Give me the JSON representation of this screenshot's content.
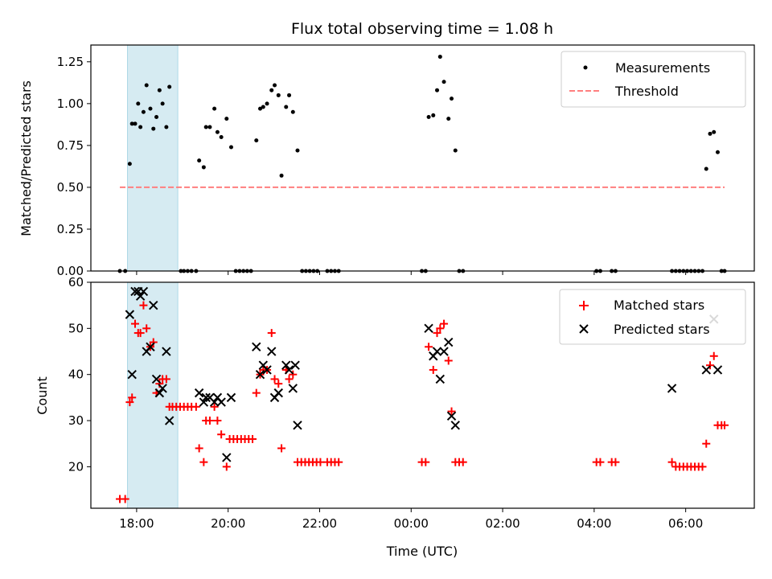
{
  "chart_data": [
    {
      "type": "scatter",
      "title": "Flux total observing time = 1.08 h",
      "xlabel": "",
      "ylabel": "Matched/Predicted stars",
      "xlim": [
        "17:00",
        "07:30"
      ],
      "ylim": [
        0,
        1.35
      ],
      "yticks": [
        "0.00",
        "0.25",
        "0.50",
        "0.75",
        "1.00",
        "1.25"
      ],
      "shaded_interval": {
        "start": "17:48",
        "end": "18:54",
        "color": "#add8e6"
      },
      "legend_position": "upper right",
      "series": [
        {
          "name": "Measurements",
          "marker": "dot",
          "color": "#000000",
          "points": [
            [
              "17:38",
              0
            ],
            [
              "17:45",
              0
            ],
            [
              "17:51",
              0.64
            ],
            [
              "17:54",
              0.88
            ],
            [
              "17:58",
              0.88
            ],
            [
              "18:02",
              1.0
            ],
            [
              "18:05",
              0.86
            ],
            [
              "18:09",
              0.95
            ],
            [
              "18:13",
              1.11
            ],
            [
              "18:18",
              0.97
            ],
            [
              "18:22",
              0.85
            ],
            [
              "18:26",
              0.92
            ],
            [
              "18:30",
              1.08
            ],
            [
              "18:34",
              1.0
            ],
            [
              "18:39",
              0.86
            ],
            [
              "18:43",
              1.1
            ],
            [
              "18:58",
              0
            ],
            [
              "19:02",
              0
            ],
            [
              "19:07",
              0
            ],
            [
              "19:12",
              0
            ],
            [
              "19:18",
              0
            ],
            [
              "19:22",
              0.66
            ],
            [
              "19:28",
              0.62
            ],
            [
              "19:31",
              0.86
            ],
            [
              "19:36",
              0.86
            ],
            [
              "19:42",
              0.97
            ],
            [
              "19:46",
              0.83
            ],
            [
              "19:51",
              0.8
            ],
            [
              "19:58",
              0.91
            ],
            [
              "20:04",
              0.74
            ],
            [
              "20:10",
              0
            ],
            [
              "20:15",
              0
            ],
            [
              "20:20",
              0
            ],
            [
              "20:25",
              0
            ],
            [
              "20:30",
              0
            ],
            [
              "20:37",
              0.78
            ],
            [
              "20:42",
              0.97
            ],
            [
              "20:46",
              0.98
            ],
            [
              "20:51",
              1.0
            ],
            [
              "20:57",
              1.08
            ],
            [
              "21:01",
              1.11
            ],
            [
              "21:06",
              1.05
            ],
            [
              "21:10",
              0.57
            ],
            [
              "21:16",
              0.98
            ],
            [
              "21:20",
              1.05
            ],
            [
              "21:25",
              0.95
            ],
            [
              "21:31",
              0.72
            ],
            [
              "21:37",
              0
            ],
            [
              "21:42",
              0
            ],
            [
              "21:47",
              0
            ],
            [
              "21:52",
              0
            ],
            [
              "21:57",
              0
            ],
            [
              "22:10",
              0
            ],
            [
              "22:15",
              0
            ],
            [
              "22:20",
              0
            ],
            [
              "22:25",
              0
            ],
            [
              "00:14",
              0
            ],
            [
              "00:19",
              0
            ],
            [
              "00:23",
              0.92
            ],
            [
              "00:29",
              0.93
            ],
            [
              "00:34",
              1.08
            ],
            [
              "00:38",
              1.28
            ],
            [
              "00:43",
              1.13
            ],
            [
              "00:49",
              0.91
            ],
            [
              "00:53",
              1.03
            ],
            [
              "00:58",
              0.72
            ],
            [
              "01:03",
              0
            ],
            [
              "01:08",
              0
            ],
            [
              "04:03",
              0
            ],
            [
              "04:08",
              0
            ],
            [
              "04:23",
              0
            ],
            [
              "04:28",
              0
            ],
            [
              "05:42",
              0
            ],
            [
              "05:47",
              0
            ],
            [
              "05:52",
              0
            ],
            [
              "05:57",
              0
            ],
            [
              "06:02",
              0
            ],
            [
              "06:07",
              0
            ],
            [
              "06:12",
              0
            ],
            [
              "06:17",
              0
            ],
            [
              "06:22",
              0
            ],
            [
              "06:27",
              0.61
            ],
            [
              "06:32",
              0.82
            ],
            [
              "06:37",
              0.83
            ],
            [
              "06:42",
              0.71
            ],
            [
              "06:47",
              0
            ],
            [
              "06:51",
              0
            ]
          ]
        },
        {
          "name": "Threshold",
          "line_style": "dashed",
          "color": "#ff7f7f",
          "points": [
            [
              "17:38",
              0.5
            ],
            [
              "06:51",
              0.5
            ]
          ]
        }
      ]
    },
    {
      "type": "scatter",
      "title": "",
      "xlabel": "Time (UTC)",
      "ylabel": "Count",
      "xlim": [
        "17:00",
        "07:30"
      ],
      "ylim": [
        11,
        60
      ],
      "yticks": [
        "20",
        "30",
        "40",
        "50",
        "60"
      ],
      "xticks": [
        "18:00",
        "20:00",
        "22:00",
        "00:00",
        "02:00",
        "04:00",
        "06:00"
      ],
      "shaded_interval": {
        "start": "17:48",
        "end": "18:54",
        "color": "#add8e6"
      },
      "legend_position": "upper right",
      "series": [
        {
          "name": "Matched stars",
          "marker": "plus",
          "color": "#ff0000",
          "points": [
            [
              "17:38",
              13
            ],
            [
              "17:45",
              13
            ],
            [
              "17:51",
              34
            ],
            [
              "17:54",
              35
            ],
            [
              "17:58",
              51
            ],
            [
              "18:02",
              49
            ],
            [
              "18:05",
              49
            ],
            [
              "18:09",
              55
            ],
            [
              "18:13",
              50
            ],
            [
              "18:18",
              46
            ],
            [
              "18:22",
              47
            ],
            [
              "18:26",
              36
            ],
            [
              "18:30",
              38
            ],
            [
              "18:34",
              39
            ],
            [
              "18:39",
              39
            ],
            [
              "18:43",
              33
            ],
            [
              "18:47",
              33
            ],
            [
              "18:52",
              33
            ],
            [
              "18:57",
              33
            ],
            [
              "19:02",
              33
            ],
            [
              "19:07",
              33
            ],
            [
              "19:12",
              33
            ],
            [
              "19:18",
              33
            ],
            [
              "19:22",
              24
            ],
            [
              "19:28",
              21
            ],
            [
              "19:31",
              30
            ],
            [
              "19:36",
              30
            ],
            [
              "19:42",
              33
            ],
            [
              "19:46",
              30
            ],
            [
              "19:51",
              27
            ],
            [
              "19:58",
              20
            ],
            [
              "20:02",
              26
            ],
            [
              "20:07",
              26
            ],
            [
              "20:12",
              26
            ],
            [
              "20:17",
              26
            ],
            [
              "20:22",
              26
            ],
            [
              "20:27",
              26
            ],
            [
              "20:32",
              26
            ],
            [
              "20:37",
              36
            ],
            [
              "20:42",
              40
            ],
            [
              "20:46",
              41
            ],
            [
              "20:51",
              41
            ],
            [
              "20:57",
              49
            ],
            [
              "21:01",
              39
            ],
            [
              "21:06",
              38
            ],
            [
              "21:10",
              24
            ],
            [
              "21:16",
              41
            ],
            [
              "21:20",
              39
            ],
            [
              "21:25",
              40
            ],
            [
              "21:31",
              21
            ],
            [
              "21:36",
              21
            ],
            [
              "21:41",
              21
            ],
            [
              "21:46",
              21
            ],
            [
              "21:51",
              21
            ],
            [
              "21:56",
              21
            ],
            [
              "22:01",
              21
            ],
            [
              "22:10",
              21
            ],
            [
              "22:15",
              21
            ],
            [
              "22:20",
              21
            ],
            [
              "22:25",
              21
            ],
            [
              "00:14",
              21
            ],
            [
              "00:19",
              21
            ],
            [
              "00:23",
              46
            ],
            [
              "00:29",
              41
            ],
            [
              "00:34",
              49
            ],
            [
              "00:38",
              50
            ],
            [
              "00:43",
              51
            ],
            [
              "00:49",
              43
            ],
            [
              "00:53",
              32
            ],
            [
              "00:58",
              21
            ],
            [
              "01:03",
              21
            ],
            [
              "01:08",
              21
            ],
            [
              "04:03",
              21
            ],
            [
              "04:08",
              21
            ],
            [
              "04:23",
              21
            ],
            [
              "04:28",
              21
            ],
            [
              "05:42",
              21
            ],
            [
              "05:47",
              20
            ],
            [
              "05:52",
              20
            ],
            [
              "05:57",
              20
            ],
            [
              "06:02",
              20
            ],
            [
              "06:07",
              20
            ],
            [
              "06:12",
              20
            ],
            [
              "06:17",
              20
            ],
            [
              "06:22",
              20
            ],
            [
              "06:27",
              25
            ],
            [
              "06:32",
              42
            ],
            [
              "06:37",
              44
            ],
            [
              "06:42",
              29
            ],
            [
              "06:47",
              29
            ],
            [
              "06:51",
              29
            ]
          ]
        },
        {
          "name": "Predicted stars",
          "marker": "x",
          "color": "#000000",
          "points": [
            [
              "17:51",
              53
            ],
            [
              "17:54",
              40
            ],
            [
              "17:58",
              58
            ],
            [
              "18:02",
              58
            ],
            [
              "18:05",
              57
            ],
            [
              "18:09",
              58
            ],
            [
              "18:13",
              45
            ],
            [
              "18:18",
              46
            ],
            [
              "18:22",
              55
            ],
            [
              "18:26",
              39
            ],
            [
              "18:30",
              36
            ],
            [
              "18:34",
              37
            ],
            [
              "18:39",
              45
            ],
            [
              "18:43",
              30
            ],
            [
              "19:22",
              36
            ],
            [
              "19:28",
              34
            ],
            [
              "19:31",
              35
            ],
            [
              "19:36",
              35
            ],
            [
              "19:42",
              34
            ],
            [
              "19:46",
              35
            ],
            [
              "19:51",
              34
            ],
            [
              "19:58",
              22
            ],
            [
              "20:04",
              35
            ],
            [
              "20:37",
              46
            ],
            [
              "20:42",
              40
            ],
            [
              "20:46",
              42
            ],
            [
              "20:51",
              41
            ],
            [
              "20:57",
              45
            ],
            [
              "21:01",
              35
            ],
            [
              "21:06",
              36
            ],
            [
              "21:16",
              42
            ],
            [
              "21:20",
              41
            ],
            [
              "21:25",
              37
            ],
            [
              "21:28",
              42
            ],
            [
              "21:31",
              29
            ],
            [
              "00:23",
              50
            ],
            [
              "00:29",
              44
            ],
            [
              "00:34",
              45
            ],
            [
              "00:38",
              39
            ],
            [
              "00:43",
              45
            ],
            [
              "00:49",
              47
            ],
            [
              "00:53",
              31
            ],
            [
              "00:58",
              29
            ],
            [
              "05:42",
              37
            ],
            [
              "06:27",
              41
            ],
            [
              "06:37",
              52
            ],
            [
              "06:42",
              41
            ]
          ]
        }
      ]
    }
  ]
}
